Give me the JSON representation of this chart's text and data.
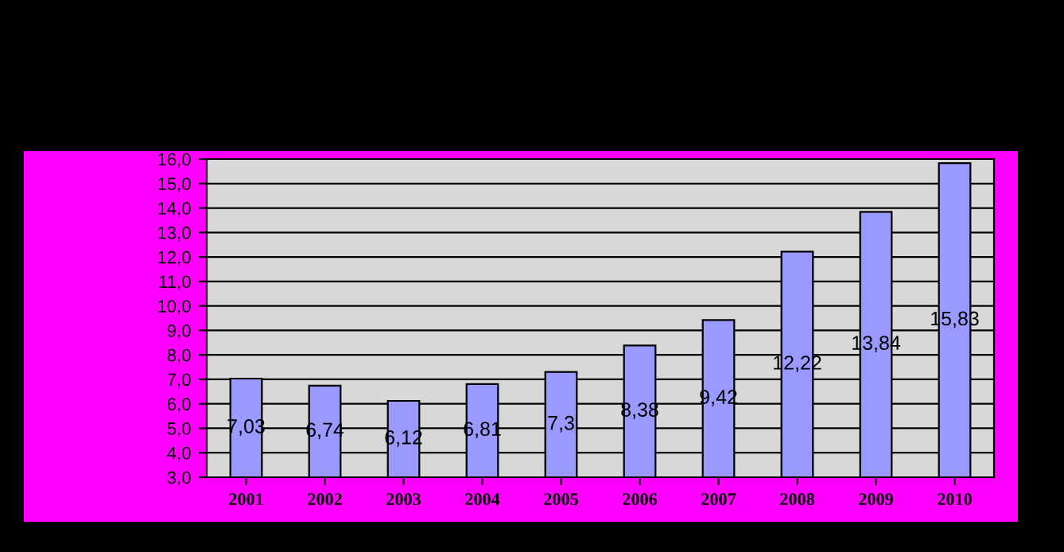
{
  "chart_data": {
    "type": "bar",
    "categories": [
      "2001",
      "2002",
      "2003",
      "2004",
      "2005",
      "2006",
      "2007",
      "2008",
      "2009",
      "2010"
    ],
    "values": [
      7.03,
      6.74,
      6.12,
      6.81,
      7.3,
      8.38,
      9.42,
      12.22,
      13.84,
      15.83
    ],
    "value_labels": [
      "7,03",
      "6,74",
      "6,12",
      "6,81",
      "7,3",
      "8,38",
      "9,42",
      "12,22",
      "13,84",
      "15,83"
    ],
    "color": "#9999ff",
    "ylim": [
      3,
      16
    ],
    "yticks": [
      {
        "value": 3,
        "label": "3,0"
      },
      {
        "value": 4,
        "label": "4,0"
      },
      {
        "value": 5,
        "label": "5,0"
      },
      {
        "value": 6,
        "label": "6,0"
      },
      {
        "value": 7,
        "label": "7,0"
      },
      {
        "value": 8,
        "label": "8,0"
      },
      {
        "value": 9,
        "label": "9,0"
      },
      {
        "value": 10,
        "label": "10,0"
      },
      {
        "value": 11,
        "label": "11,0"
      },
      {
        "value": 12,
        "label": "12,0"
      },
      {
        "value": 13,
        "label": "13,0"
      },
      {
        "value": 14,
        "label": "14,0"
      },
      {
        "value": 15,
        "label": "15,0"
      },
      {
        "value": 16,
        "label": "16,0"
      }
    ],
    "grid": "y"
  }
}
